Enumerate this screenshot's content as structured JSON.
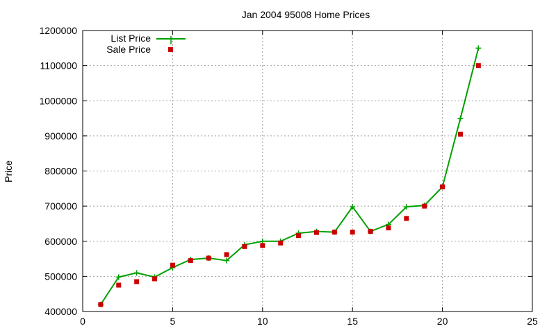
{
  "chart_data": {
    "type": "line",
    "title": "Jan 2004 95008 Home Prices",
    "xlabel": "",
    "ylabel": "Price",
    "xlim": [
      0,
      25
    ],
    "ylim": [
      400000,
      1200000
    ],
    "xticks": [
      0,
      5,
      10,
      15,
      20,
      25
    ],
    "yticks": [
      400000,
      500000,
      600000,
      700000,
      800000,
      900000,
      1000000,
      1100000,
      1200000
    ],
    "grid": true,
    "legend_position": "top-left",
    "series": [
      {
        "name": "List Price",
        "style": "line-with-points",
        "color": "#00a000",
        "x": [
          1,
          2,
          3,
          4,
          5,
          6,
          7,
          8,
          9,
          10,
          11,
          12,
          13,
          14,
          15,
          16,
          17,
          18,
          19,
          20,
          21,
          22
        ],
        "y": [
          420000,
          498000,
          510000,
          498000,
          525000,
          548000,
          552000,
          545000,
          590000,
          600000,
          600000,
          623000,
          628000,
          626000,
          698000,
          628000,
          648000,
          698000,
          702000,
          755000,
          950000,
          1150000
        ]
      },
      {
        "name": "Sale Price",
        "style": "points",
        "color": "#cc0000",
        "x": [
          1,
          2,
          3,
          4,
          5,
          6,
          7,
          8,
          9,
          10,
          11,
          12,
          13,
          14,
          15,
          16,
          17,
          18,
          19,
          20,
          21,
          22
        ],
        "y": [
          420000,
          475000,
          485000,
          493000,
          532000,
          545000,
          552000,
          562000,
          585000,
          588000,
          595000,
          616000,
          625000,
          626000,
          626000,
          628000,
          638000,
          665000,
          700000,
          755000,
          905000,
          1100000
        ]
      }
    ]
  }
}
